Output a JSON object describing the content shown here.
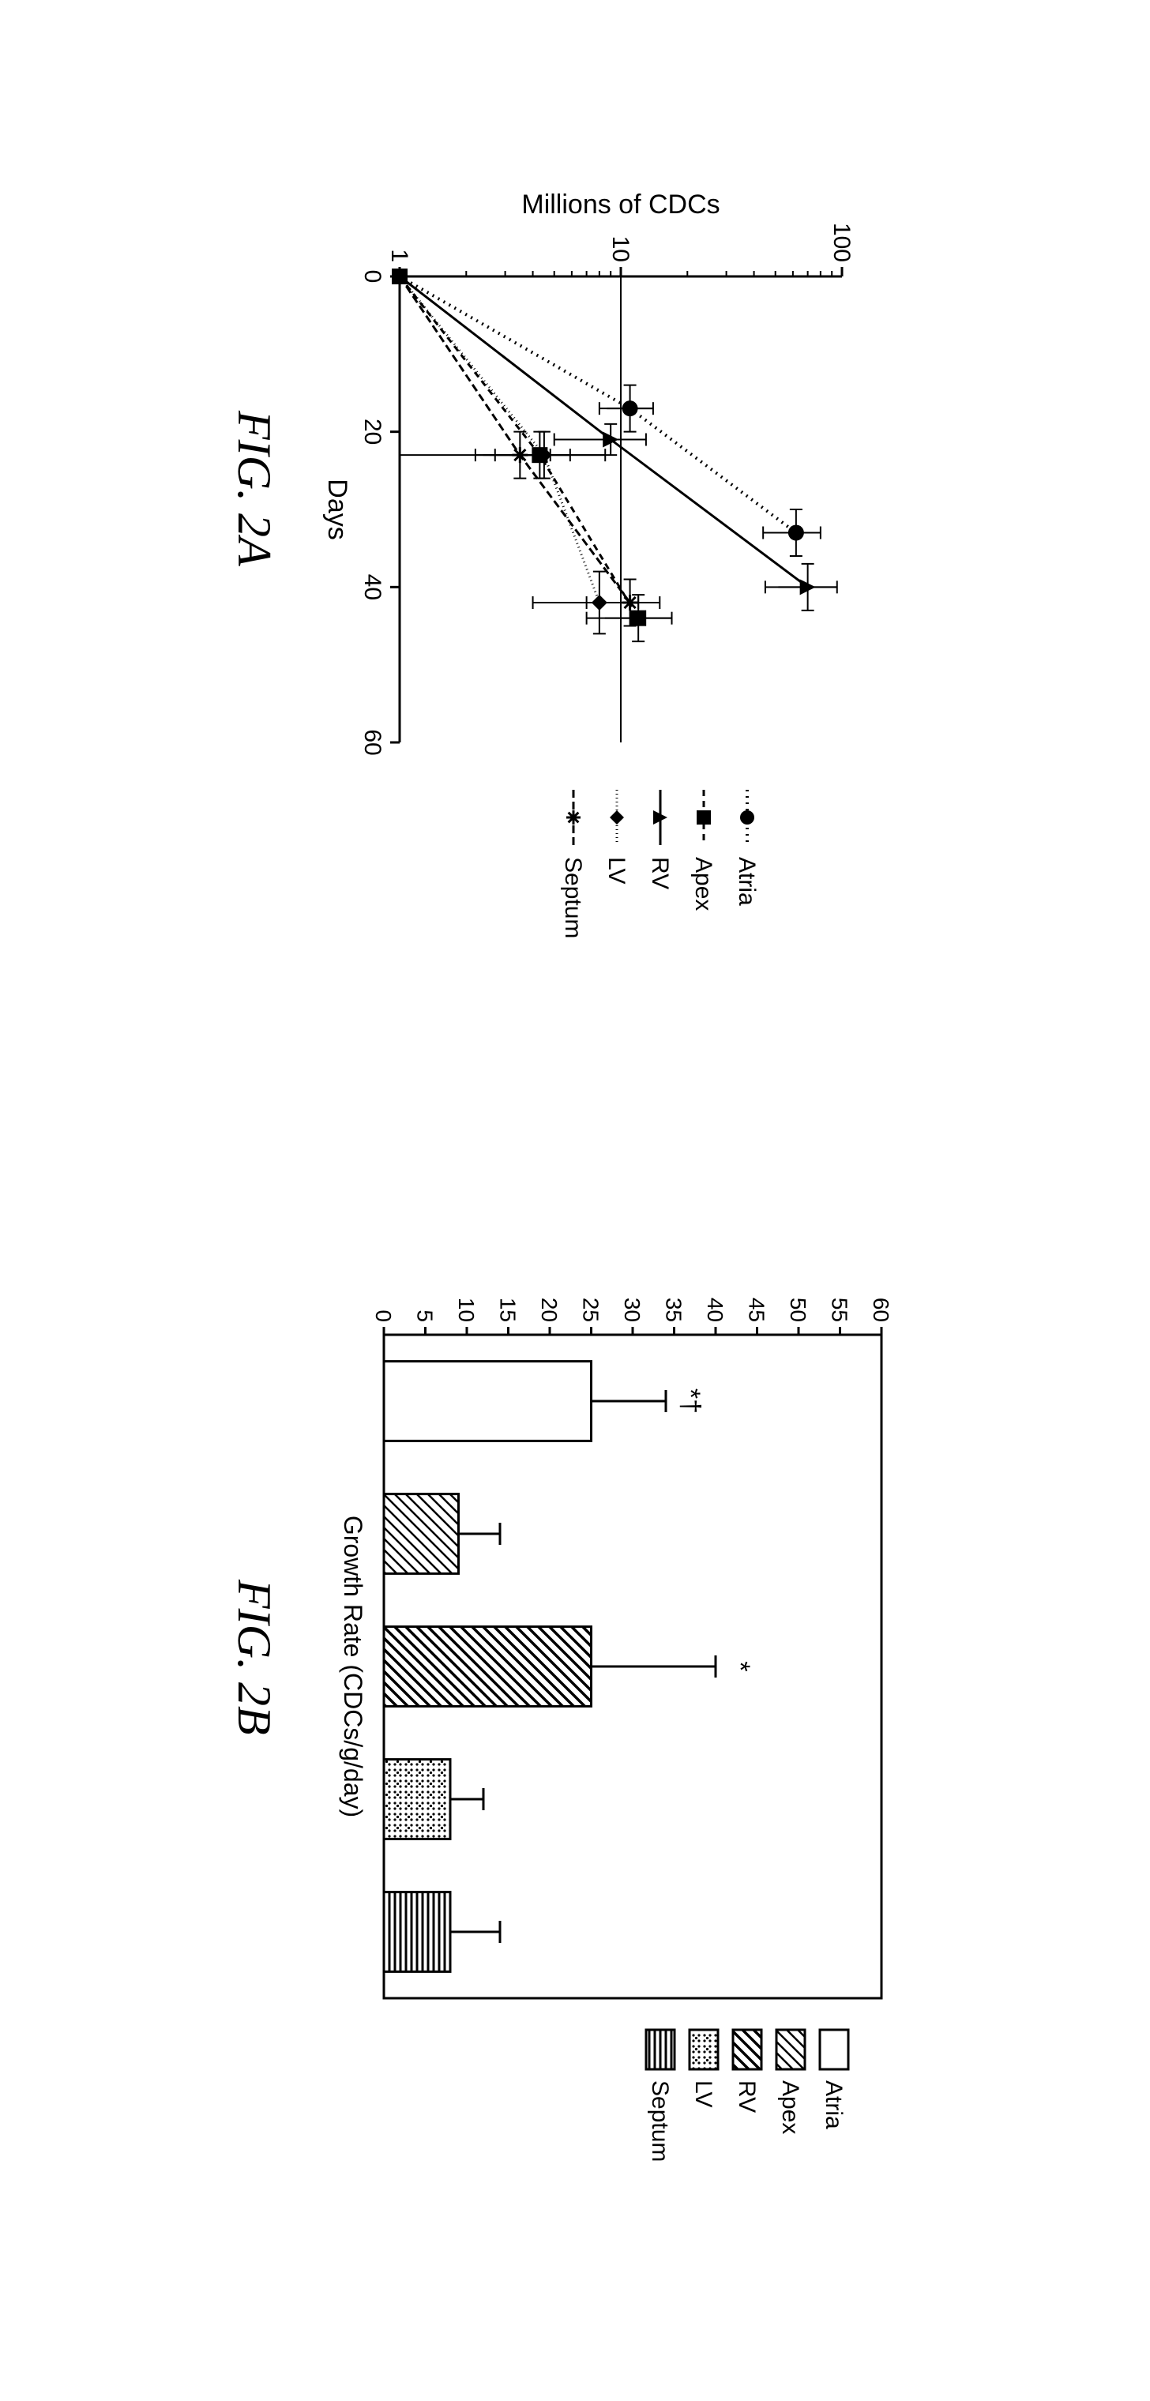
{
  "figA": {
    "label": "FIG. 2A",
    "type": "line-log",
    "ylabel": "Millions of CDCs",
    "xlabel": "Days",
    "xlim": [
      0,
      60
    ],
    "ylim_log": [
      1,
      100
    ],
    "xticks": [
      0,
      20,
      40,
      60
    ],
    "yticks": [
      1,
      10,
      100
    ],
    "background": "#ffffff",
    "stroke": "#000000",
    "stroke_width": 3,
    "series": [
      {
        "name": "Atria",
        "marker": "circle",
        "dash": "2,6",
        "linewidth": 4,
        "points": [
          {
            "x": 0,
            "y": 1,
            "errx": 0,
            "erry": 0
          },
          {
            "x": 17,
            "y": 11,
            "errx": 3,
            "erry": 3
          },
          {
            "x": 33,
            "y": 62,
            "errx": 3,
            "erry": 18
          }
        ]
      },
      {
        "name": "Apex",
        "marker": "square",
        "dash": "8,6",
        "linewidth": 3,
        "points": [
          {
            "x": 0,
            "y": 1,
            "errx": 0,
            "erry": 0
          },
          {
            "x": 23,
            "y": 4.3,
            "errx": 3,
            "erry": 1.6
          },
          {
            "x": 44,
            "y": 12,
            "errx": 3,
            "erry": 5
          }
        ]
      },
      {
        "name": "RV",
        "marker": "triangle",
        "dash": "",
        "linewidth": 3,
        "points": [
          {
            "x": 0,
            "y": 1,
            "errx": 0,
            "erry": 0
          },
          {
            "x": 21,
            "y": 9,
            "errx": 2,
            "erry": 4
          },
          {
            "x": 40,
            "y": 70,
            "errx": 3,
            "erry": 25
          }
        ]
      },
      {
        "name": "LV",
        "marker": "diamond",
        "dash": "1,4",
        "linewidth": 3,
        "points": [
          {
            "x": 0,
            "y": 1,
            "errx": 0,
            "erry": 0
          },
          {
            "x": 23,
            "y": 4.5,
            "errx": 3,
            "erry": 4
          },
          {
            "x": 42,
            "y": 8,
            "errx": 4,
            "erry": 4
          }
        ]
      },
      {
        "name": "Septum",
        "marker": "asterisk",
        "dash": "10,5",
        "linewidth": 3,
        "points": [
          {
            "x": 0,
            "y": 1,
            "errx": 0,
            "erry": 0
          },
          {
            "x": 23,
            "y": 3.5,
            "errx": 3,
            "erry": 1.3
          },
          {
            "x": 42,
            "y": 11,
            "errx": 3,
            "erry": 4
          }
        ]
      }
    ]
  },
  "figB": {
    "label": "FIG. 2B",
    "type": "bar",
    "xlabel": "Growth Rate (CDCs/g/day)",
    "ylim": [
      0,
      60
    ],
    "ytick_step": 5,
    "background": "#ffffff",
    "stroke": "#000000",
    "stroke_width": 3,
    "bar_width": 0.6,
    "bars": [
      {
        "name": "Atria",
        "value": 25,
        "err": 9,
        "annot": "*†"
      },
      {
        "name": "Apex",
        "value": 9,
        "err": 5,
        "annot": ""
      },
      {
        "name": "RV",
        "value": 25,
        "err": 15,
        "annot": "*"
      },
      {
        "name": "LV",
        "value": 8,
        "err": 4,
        "annot": ""
      },
      {
        "name": "Septum",
        "value": 8,
        "err": 6,
        "annot": ""
      }
    ]
  },
  "legend": {
    "items": [
      {
        "label": "Atria",
        "pattern": "none"
      },
      {
        "label": "Apex",
        "pattern": "diag"
      },
      {
        "label": "RV",
        "pattern": "diag2"
      },
      {
        "label": "LV",
        "pattern": "dots"
      },
      {
        "label": "Septum",
        "pattern": "hstripe"
      }
    ]
  }
}
